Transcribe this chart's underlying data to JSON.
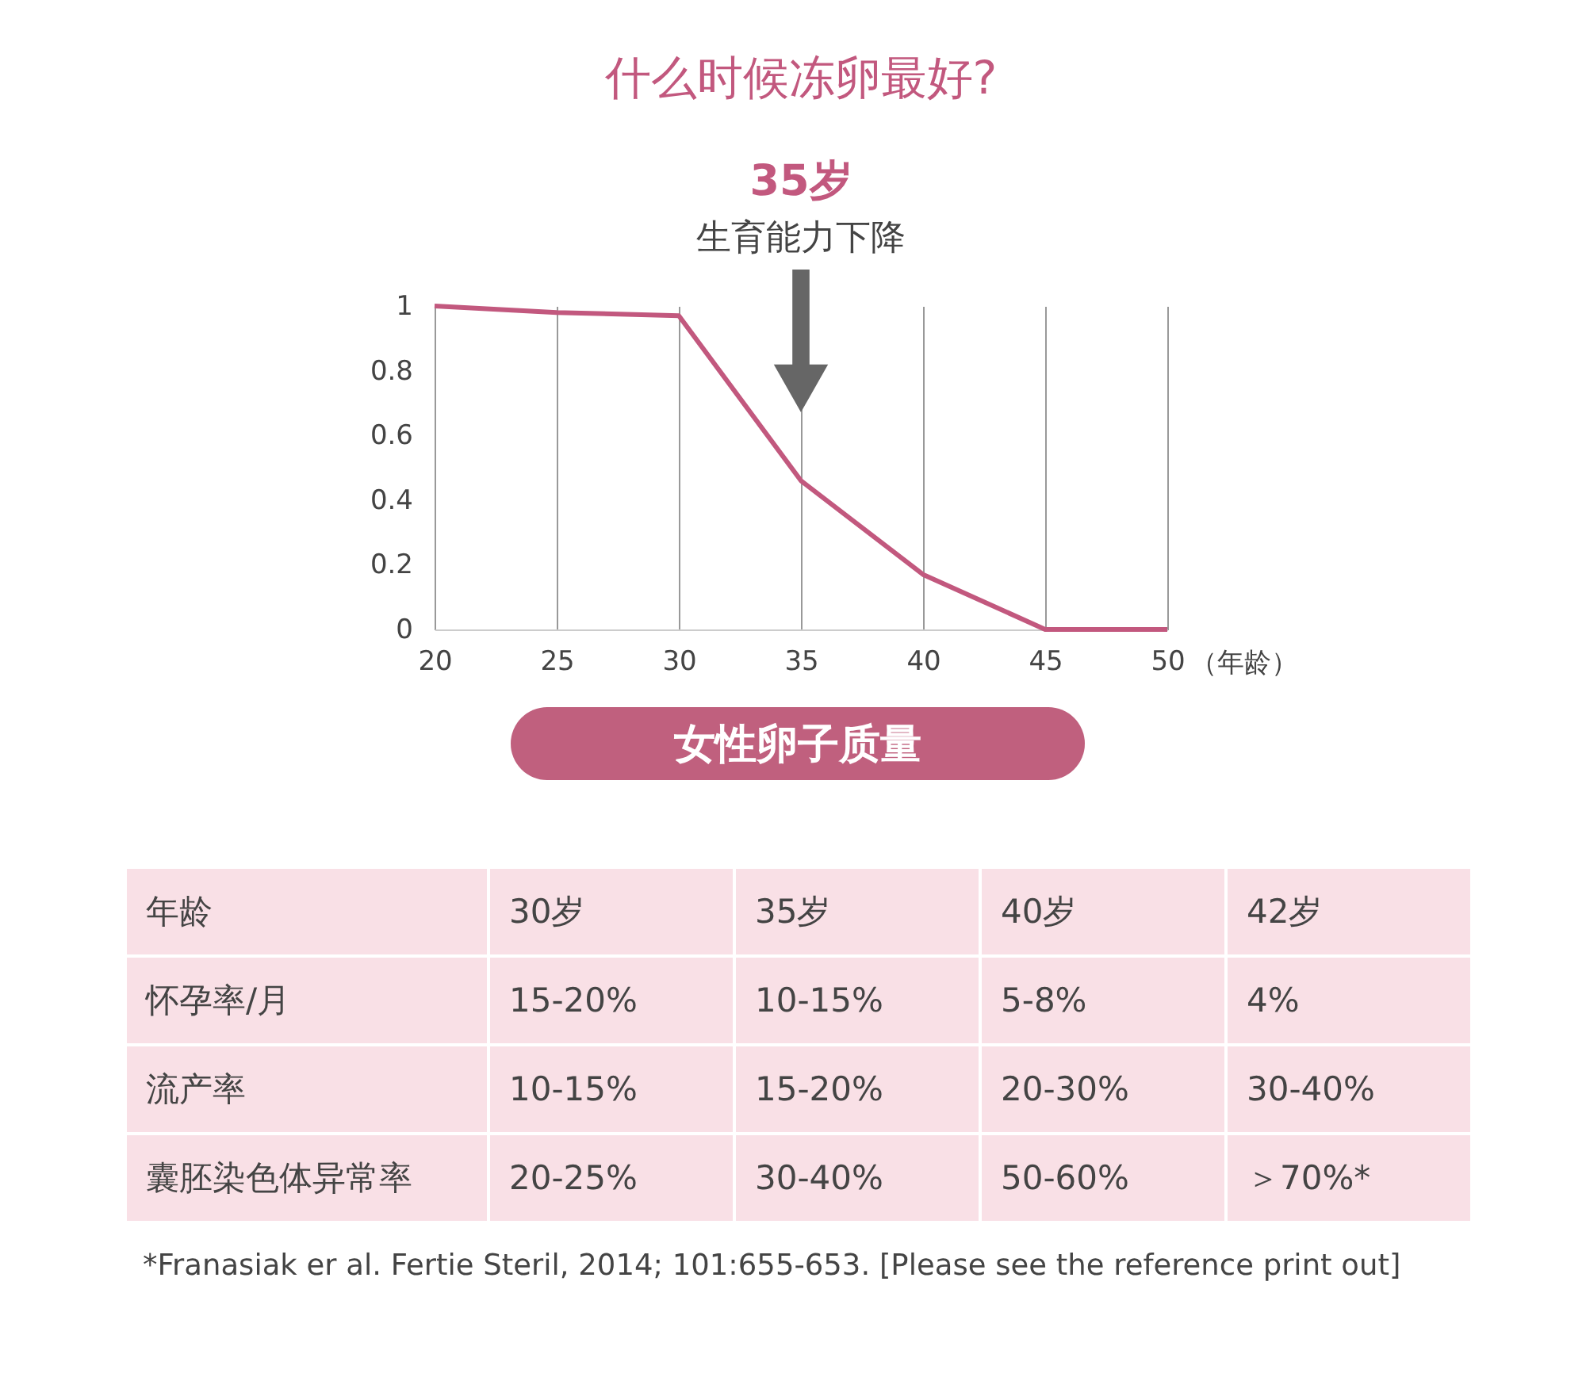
{
  "chart_data": [
    {
      "type": "line",
      "title": "什么时候冻卵最好?",
      "xlabel": "（年龄）",
      "x": [
        20,
        25,
        30,
        35,
        40,
        45,
        50
      ],
      "series": [
        {
          "color": "#c2587e",
          "values": [
            1,
            0.98,
            0.97,
            0.46,
            0.17,
            0,
            0
          ]
        }
      ],
      "xlim": [
        20,
        50
      ],
      "xticks": [
        20,
        25,
        30,
        35,
        40,
        45,
        50
      ],
      "ylim": [
        0,
        1
      ],
      "yticks": [
        0,
        0.2,
        0.4,
        0.6,
        0.8,
        1
      ],
      "grid": "x",
      "annotations": [
        "35岁",
        "生育能力下降",
        "女性卵子质量"
      ]
    },
    {
      "type": "other",
      "annotations": [
        "年龄",
        "30岁",
        "35岁",
        "40岁",
        "42岁",
        "怀孕率/月",
        "15-20%",
        "10-15%",
        "5-8%",
        "4%",
        "流产率",
        "10-15%",
        "15-20%",
        "20-30%",
        "30-40%",
        "囊胚染色体异常率",
        "20-25%",
        "30-40%",
        "50-60%",
        "＞70%*",
        "*Franasiak er al. Fertie Steril, 2014; 101:655-653. [Please see the reference print out]"
      ]
    }
  ]
}
